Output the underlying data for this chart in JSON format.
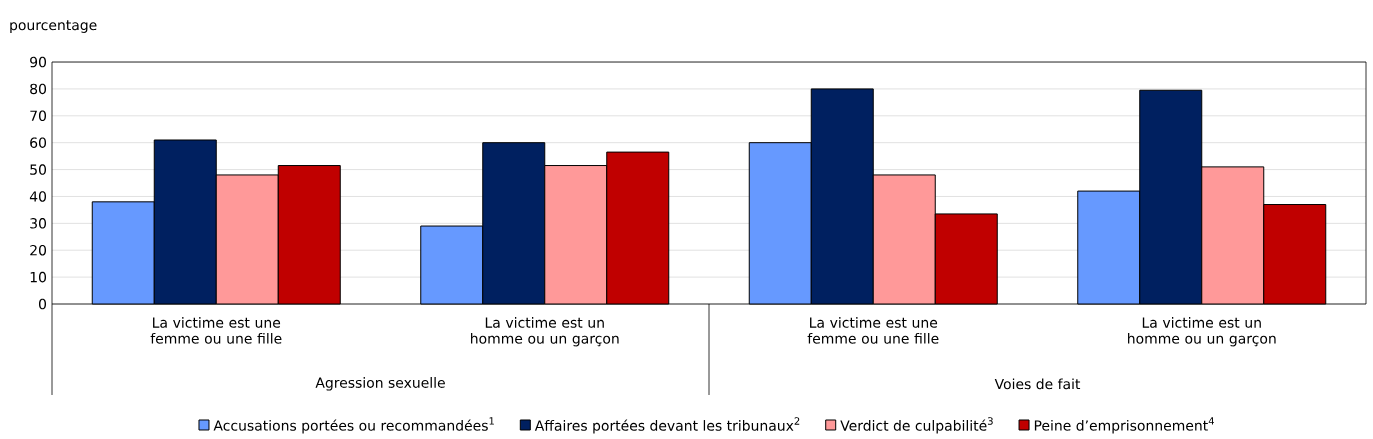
{
  "chart_data": {
    "type": "bar",
    "ylabel": "pourcentage",
    "categories": [
      "La victime est une femme ou une fille",
      "La victime est un homme ou un garçon",
      "La victime est une femme ou une fille",
      "La victime est un homme ou un garçon"
    ],
    "series": [
      {
        "name": "Accusations portées ou recommandées$^{1}$",
        "color": "#6699ff",
        "values": [
          38,
          29,
          60,
          42
        ]
      },
      {
        "name": "Affaires portées devant les tribunaux$^{2}$",
        "color": "#002060",
        "values": [
          61,
          60,
          80,
          79.5
        ]
      },
      {
        "name": "Verdict de culpabilité$^{3}$",
        "color": "#ff9999",
        "values": [
          48,
          51.5,
          48,
          51
        ]
      },
      {
        "name": "Peine d’emprisonnement$^{4}$",
        "color": "#c00000",
        "values": [
          51.5,
          56.5,
          33.5,
          37
        ]
      }
    ],
    "annotations": [
      "Agression sexuelle",
      "Voies de fait"
    ],
    "ylim": [
      0,
      90
    ],
    "yticks": [
      0,
      10,
      20,
      30,
      40,
      50,
      60,
      70,
      80,
      90
    ],
    "grid": "y",
    "legend": "bottom"
  }
}
